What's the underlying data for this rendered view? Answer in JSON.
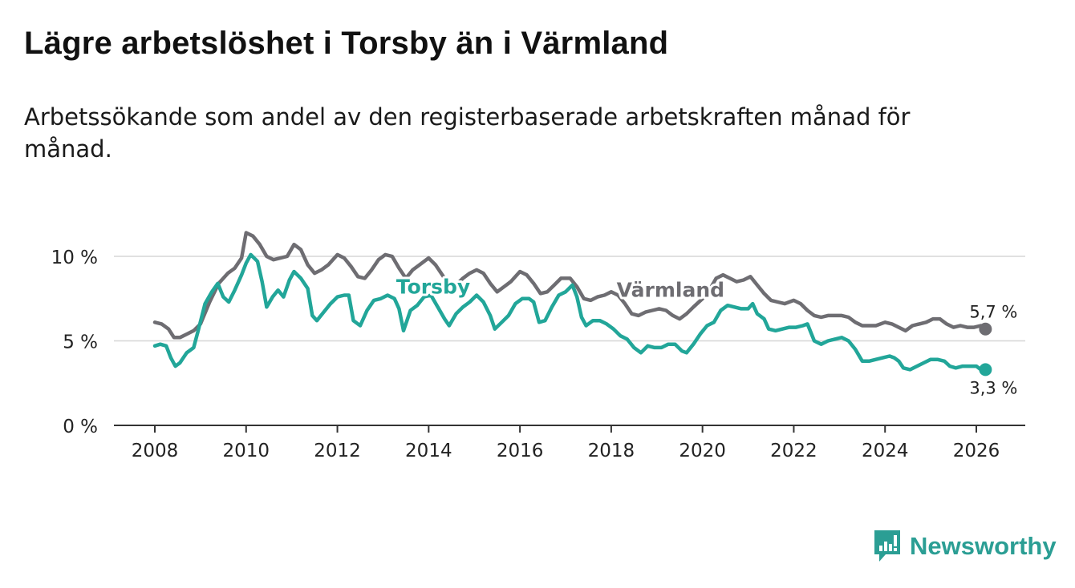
{
  "chart_data": {
    "type": "line",
    "title": "Lägre arbetslöshet i Torsby än i Värmland",
    "subtitle": "Arbetssökande som andel av den registerbaserade arbetskraften månad för månad.",
    "xlabel": "",
    "ylabel": "",
    "xlim": [
      2007.55,
      2027.1
    ],
    "ylim": [
      0,
      10
    ],
    "x_ticks": [
      "2008",
      "2010",
      "2012",
      "2014",
      "2016",
      "2018",
      "2020",
      "2022",
      "2024",
      "2026"
    ],
    "y_ticks": [
      "0 %",
      "5 %",
      "10 %"
    ],
    "grid": true,
    "series": [
      {
        "name": "Värmland",
        "color": "#6e6d72",
        "end_label": "5,7 %",
        "points": [
          [
            2008.0,
            6.1
          ],
          [
            2008.15,
            6.0
          ],
          [
            2008.3,
            5.7
          ],
          [
            2008.42,
            5.2
          ],
          [
            2008.55,
            5.2
          ],
          [
            2008.7,
            5.4
          ],
          [
            2008.85,
            5.6
          ],
          [
            2009.0,
            6.0
          ],
          [
            2009.2,
            7.3
          ],
          [
            2009.4,
            8.4
          ],
          [
            2009.6,
            9.0
          ],
          [
            2009.75,
            9.3
          ],
          [
            2009.9,
            9.9
          ],
          [
            2010.0,
            11.4
          ],
          [
            2010.15,
            11.2
          ],
          [
            2010.3,
            10.7
          ],
          [
            2010.45,
            10.0
          ],
          [
            2010.6,
            9.8
          ],
          [
            2010.75,
            9.9
          ],
          [
            2010.9,
            10.0
          ],
          [
            2011.05,
            10.7
          ],
          [
            2011.2,
            10.4
          ],
          [
            2011.35,
            9.5
          ],
          [
            2011.5,
            9.0
          ],
          [
            2011.65,
            9.2
          ],
          [
            2011.8,
            9.5
          ],
          [
            2012.0,
            10.1
          ],
          [
            2012.15,
            9.9
          ],
          [
            2012.3,
            9.4
          ],
          [
            2012.45,
            8.8
          ],
          [
            2012.6,
            8.7
          ],
          [
            2012.75,
            9.2
          ],
          [
            2012.9,
            9.8
          ],
          [
            2013.05,
            10.1
          ],
          [
            2013.2,
            10.0
          ],
          [
            2013.35,
            9.3
          ],
          [
            2013.5,
            8.7
          ],
          [
            2013.65,
            9.2
          ],
          [
            2013.8,
            9.5
          ],
          [
            2014.0,
            9.9
          ],
          [
            2014.15,
            9.5
          ],
          [
            2014.3,
            8.9
          ],
          [
            2014.45,
            8.3
          ],
          [
            2014.6,
            8.3
          ],
          [
            2014.75,
            8.7
          ],
          [
            2014.9,
            9.0
          ],
          [
            2015.05,
            9.2
          ],
          [
            2015.2,
            9.0
          ],
          [
            2015.35,
            8.4
          ],
          [
            2015.5,
            7.9
          ],
          [
            2015.65,
            8.2
          ],
          [
            2015.8,
            8.5
          ],
          [
            2016.0,
            9.1
          ],
          [
            2016.15,
            8.9
          ],
          [
            2016.3,
            8.4
          ],
          [
            2016.45,
            7.8
          ],
          [
            2016.6,
            7.9
          ],
          [
            2016.75,
            8.3
          ],
          [
            2016.9,
            8.7
          ],
          [
            2017.1,
            8.7
          ],
          [
            2017.25,
            8.2
          ],
          [
            2017.4,
            7.5
          ],
          [
            2017.55,
            7.4
          ],
          [
            2017.7,
            7.6
          ],
          [
            2017.85,
            7.7
          ],
          [
            2018.0,
            7.9
          ],
          [
            2018.15,
            7.7
          ],
          [
            2018.3,
            7.2
          ],
          [
            2018.45,
            6.6
          ],
          [
            2018.6,
            6.5
          ],
          [
            2018.75,
            6.7
          ],
          [
            2018.9,
            6.8
          ],
          [
            2019.05,
            6.9
          ],
          [
            2019.2,
            6.8
          ],
          [
            2019.35,
            6.5
          ],
          [
            2019.5,
            6.3
          ],
          [
            2019.65,
            6.6
          ],
          [
            2019.8,
            7.0
          ],
          [
            2020.0,
            7.5
          ],
          [
            2020.15,
            8.0
          ],
          [
            2020.3,
            8.7
          ],
          [
            2020.45,
            8.9
          ],
          [
            2020.6,
            8.7
          ],
          [
            2020.75,
            8.5
          ],
          [
            2020.9,
            8.6
          ],
          [
            2021.05,
            8.8
          ],
          [
            2021.2,
            8.3
          ],
          [
            2021.35,
            7.8
          ],
          [
            2021.5,
            7.4
          ],
          [
            2021.65,
            7.3
          ],
          [
            2021.8,
            7.2
          ],
          [
            2022.0,
            7.4
          ],
          [
            2022.15,
            7.2
          ],
          [
            2022.3,
            6.8
          ],
          [
            2022.45,
            6.5
          ],
          [
            2022.6,
            6.4
          ],
          [
            2022.75,
            6.5
          ],
          [
            2022.9,
            6.5
          ],
          [
            2023.05,
            6.5
          ],
          [
            2023.2,
            6.4
          ],
          [
            2023.35,
            6.1
          ],
          [
            2023.5,
            5.9
          ],
          [
            2023.65,
            5.9
          ],
          [
            2023.8,
            5.9
          ],
          [
            2024.0,
            6.1
          ],
          [
            2024.15,
            6.0
          ],
          [
            2024.3,
            5.8
          ],
          [
            2024.45,
            5.6
          ],
          [
            2024.6,
            5.9
          ],
          [
            2024.75,
            6.0
          ],
          [
            2024.9,
            6.1
          ],
          [
            2025.05,
            6.3
          ],
          [
            2025.2,
            6.3
          ],
          [
            2025.35,
            6.0
          ],
          [
            2025.5,
            5.8
          ],
          [
            2025.65,
            5.9
          ],
          [
            2025.8,
            5.8
          ],
          [
            2025.95,
            5.8
          ],
          [
            2026.1,
            5.9
          ],
          [
            2026.2,
            5.7
          ]
        ]
      },
      {
        "name": "Torsby",
        "color": "#22a699",
        "end_label": "3,3 %",
        "points": [
          [
            2008.0,
            4.7
          ],
          [
            2008.12,
            4.8
          ],
          [
            2008.25,
            4.7
          ],
          [
            2008.35,
            4.0
          ],
          [
            2008.45,
            3.5
          ],
          [
            2008.55,
            3.7
          ],
          [
            2008.7,
            4.3
          ],
          [
            2008.85,
            4.6
          ],
          [
            2008.95,
            5.6
          ],
          [
            2009.1,
            7.2
          ],
          [
            2009.25,
            7.9
          ],
          [
            2009.38,
            8.4
          ],
          [
            2009.5,
            7.6
          ],
          [
            2009.62,
            7.3
          ],
          [
            2009.75,
            8.0
          ],
          [
            2009.9,
            8.9
          ],
          [
            2010.0,
            9.6
          ],
          [
            2010.1,
            10.1
          ],
          [
            2010.25,
            9.7
          ],
          [
            2010.35,
            8.5
          ],
          [
            2010.45,
            7.0
          ],
          [
            2010.58,
            7.6
          ],
          [
            2010.7,
            8.0
          ],
          [
            2010.82,
            7.6
          ],
          [
            2010.95,
            8.6
          ],
          [
            2011.05,
            9.1
          ],
          [
            2011.2,
            8.7
          ],
          [
            2011.35,
            8.1
          ],
          [
            2011.45,
            6.5
          ],
          [
            2011.55,
            6.2
          ],
          [
            2011.7,
            6.7
          ],
          [
            2011.85,
            7.2
          ],
          [
            2012.0,
            7.6
          ],
          [
            2012.15,
            7.7
          ],
          [
            2012.25,
            7.7
          ],
          [
            2012.35,
            6.2
          ],
          [
            2012.5,
            5.9
          ],
          [
            2012.65,
            6.8
          ],
          [
            2012.8,
            7.4
          ],
          [
            2012.95,
            7.5
          ],
          [
            2013.1,
            7.7
          ],
          [
            2013.25,
            7.5
          ],
          [
            2013.35,
            6.9
          ],
          [
            2013.45,
            5.6
          ],
          [
            2013.6,
            6.8
          ],
          [
            2013.75,
            7.1
          ],
          [
            2013.9,
            7.6
          ],
          [
            2014.05,
            7.7
          ],
          [
            2014.2,
            7.0
          ],
          [
            2014.35,
            6.3
          ],
          [
            2014.45,
            5.9
          ],
          [
            2014.6,
            6.6
          ],
          [
            2014.75,
            7.0
          ],
          [
            2014.9,
            7.3
          ],
          [
            2015.05,
            7.7
          ],
          [
            2015.2,
            7.3
          ],
          [
            2015.35,
            6.5
          ],
          [
            2015.45,
            5.7
          ],
          [
            2015.6,
            6.1
          ],
          [
            2015.75,
            6.5
          ],
          [
            2015.9,
            7.2
          ],
          [
            2016.05,
            7.5
          ],
          [
            2016.2,
            7.5
          ],
          [
            2016.3,
            7.3
          ],
          [
            2016.42,
            6.1
          ],
          [
            2016.55,
            6.2
          ],
          [
            2016.7,
            7.0
          ],
          [
            2016.85,
            7.7
          ],
          [
            2017.0,
            7.9
          ],
          [
            2017.15,
            8.3
          ],
          [
            2017.25,
            7.6
          ],
          [
            2017.35,
            6.4
          ],
          [
            2017.45,
            5.9
          ],
          [
            2017.6,
            6.2
          ],
          [
            2017.75,
            6.2
          ],
          [
            2017.9,
            6.0
          ],
          [
            2018.05,
            5.7
          ],
          [
            2018.2,
            5.3
          ],
          [
            2018.35,
            5.1
          ],
          [
            2018.5,
            4.6
          ],
          [
            2018.65,
            4.3
          ],
          [
            2018.8,
            4.7
          ],
          [
            2018.95,
            4.6
          ],
          [
            2019.1,
            4.6
          ],
          [
            2019.25,
            4.8
          ],
          [
            2019.4,
            4.8
          ],
          [
            2019.55,
            4.4
          ],
          [
            2019.65,
            4.3
          ],
          [
            2019.8,
            4.8
          ],
          [
            2019.95,
            5.4
          ],
          [
            2020.1,
            5.9
          ],
          [
            2020.25,
            6.1
          ],
          [
            2020.4,
            6.8
          ],
          [
            2020.55,
            7.1
          ],
          [
            2020.7,
            7.0
          ],
          [
            2020.85,
            6.9
          ],
          [
            2021.0,
            6.9
          ],
          [
            2021.1,
            7.2
          ],
          [
            2021.2,
            6.6
          ],
          [
            2021.35,
            6.3
          ],
          [
            2021.45,
            5.7
          ],
          [
            2021.6,
            5.6
          ],
          [
            2021.75,
            5.7
          ],
          [
            2021.9,
            5.8
          ],
          [
            2022.05,
            5.8
          ],
          [
            2022.2,
            5.9
          ],
          [
            2022.3,
            6.0
          ],
          [
            2022.45,
            5.0
          ],
          [
            2022.6,
            4.8
          ],
          [
            2022.75,
            5.0
          ],
          [
            2022.9,
            5.1
          ],
          [
            2023.05,
            5.2
          ],
          [
            2023.2,
            5.0
          ],
          [
            2023.35,
            4.5
          ],
          [
            2023.5,
            3.8
          ],
          [
            2023.65,
            3.8
          ],
          [
            2023.8,
            3.9
          ],
          [
            2023.95,
            4.0
          ],
          [
            2024.1,
            4.1
          ],
          [
            2024.2,
            4.0
          ],
          [
            2024.3,
            3.8
          ],
          [
            2024.4,
            3.4
          ],
          [
            2024.55,
            3.3
          ],
          [
            2024.7,
            3.5
          ],
          [
            2024.85,
            3.7
          ],
          [
            2025.0,
            3.9
          ],
          [
            2025.15,
            3.9
          ],
          [
            2025.3,
            3.8
          ],
          [
            2025.42,
            3.5
          ],
          [
            2025.55,
            3.4
          ],
          [
            2025.7,
            3.5
          ],
          [
            2025.85,
            3.5
          ],
          [
            2026.0,
            3.5
          ],
          [
            2026.1,
            3.3
          ],
          [
            2026.2,
            3.3
          ]
        ]
      }
    ]
  },
  "branding": {
    "logo_text": "Newsworthy",
    "logo_icon": "bar-chart-bubble-icon",
    "logo_color": "#2b9e94"
  }
}
